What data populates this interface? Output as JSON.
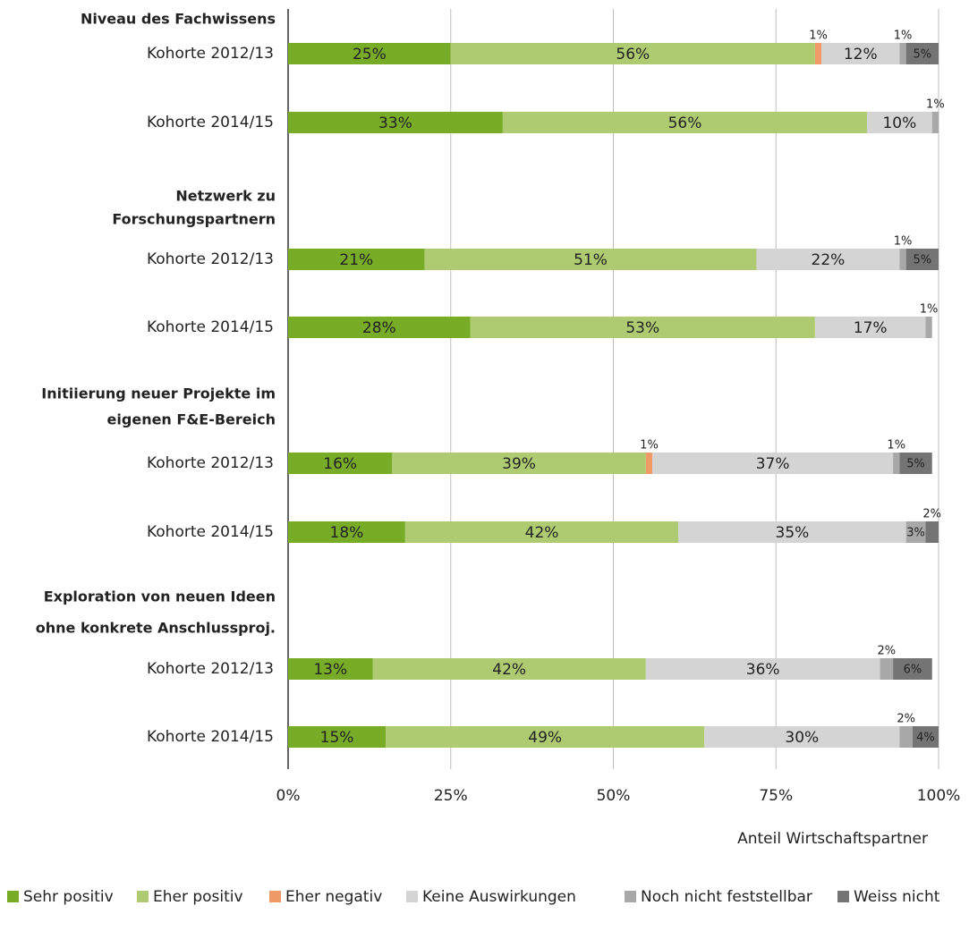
{
  "chart_data": {
    "type": "stacked-bar-horizontal",
    "groups": [
      [
        "Niveau des Fachwissens"
      ],
      [
        "Netzwerk zu",
        "Forschungspartnern"
      ],
      [
        "Initiierung neuer Projekte im",
        "eigenen F&E-Bereich"
      ],
      [
        "Exploration von neuen Ideen",
        "ohne konkrete Anschlussproj."
      ]
    ],
    "categories": [
      "Kohorte 2012/13",
      "Kohorte 2014/15",
      "Kohorte 2012/13",
      "Kohorte 2014/15",
      "Kohorte 2012/13",
      "Kohorte 2014/15",
      "Kohorte 2012/13",
      "Kohorte 2014/15"
    ],
    "series": [
      {
        "name": "Sehr positiv",
        "color": "#78ab26",
        "values": [
          25,
          33,
          21,
          28,
          16,
          18,
          13,
          15
        ],
        "value_labels": [
          "25%",
          "33%",
          "21%",
          "28%",
          "16%",
          "18%",
          "13%",
          "15%"
        ]
      },
      {
        "name": "Eher positiv",
        "color": "#aecb72",
        "values": [
          56,
          56,
          51,
          53,
          39,
          42,
          42,
          49
        ],
        "value_labels": [
          "56%",
          "56%",
          "51%",
          "53%",
          "39%",
          "42%",
          "42%",
          "49%"
        ]
      },
      {
        "name": "Eher negativ",
        "color": "#f09a68",
        "values": [
          1,
          null,
          null,
          null,
          1,
          null,
          null,
          null
        ],
        "value_labels": [
          "1%",
          null,
          null,
          null,
          "1%",
          null,
          null,
          null
        ]
      },
      {
        "name": "Keine Auswirkungen",
        "color": "#d4d4d4",
        "values": [
          12,
          10,
          22,
          17,
          37,
          35,
          36,
          30
        ],
        "value_labels": [
          "12%",
          "10%",
          "22%",
          "17%",
          "37%",
          "35%",
          "36%",
          "30%"
        ]
      },
      {
        "name": "Noch nicht feststellbar",
        "color": "#a8a8a8",
        "values": [
          1,
          1,
          1,
          1,
          1,
          3,
          2,
          2
        ],
        "value_labels": [
          "1%",
          "1%",
          "1%",
          "1%",
          "1%",
          "3%",
          "2%",
          "2%"
        ]
      },
      {
        "name": "Weiss nicht",
        "color": "#747474",
        "values": [
          5,
          null,
          5,
          null,
          5,
          2,
          6,
          4
        ],
        "value_labels": [
          "5%",
          null,
          "5%",
          null,
          "5%",
          "2%",
          "6%",
          "4%"
        ]
      }
    ],
    "xlim": [
      0,
      100
    ],
    "xticks": [
      {
        "value": 0,
        "label": "0%"
      },
      {
        "value": 25,
        "label": "25%"
      },
      {
        "value": 50,
        "label": "50%"
      },
      {
        "value": 75,
        "label": "75%"
      },
      {
        "value": 100,
        "label": "100%"
      }
    ],
    "xlabel": "Anteil Wirtschaftspartner",
    "grid": true,
    "legend": "bottom"
  }
}
